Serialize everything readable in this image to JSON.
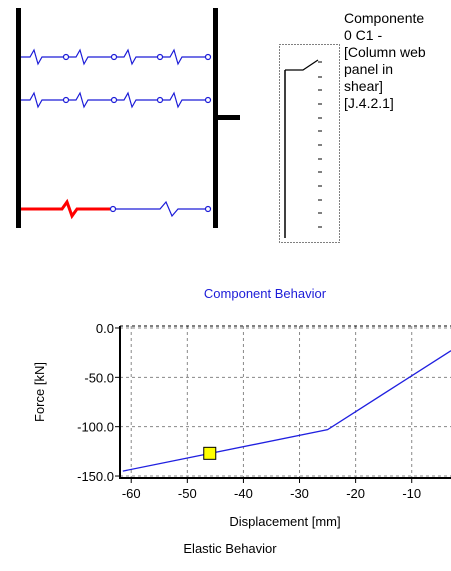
{
  "diagram": {
    "component_label": "Componente\n0 C1 -\n[Column web\npanel in\nshear]\n[J.4.2.1]"
  },
  "chart_data": {
    "type": "line",
    "title": "Component Behavior",
    "xlabel": "Displacement [mm]",
    "ylabel": "Force [kN]",
    "xlim": [
      -62,
      -3
    ],
    "ylim": [
      -152,
      2
    ],
    "xticks": [
      -60,
      -50,
      -40,
      -30,
      -20,
      -10
    ],
    "xtick_labels": [
      "-60",
      "-50",
      "-40",
      "-30",
      "-20",
      "-10"
    ],
    "yticks": [
      0,
      -50,
      -100,
      -150
    ],
    "ytick_labels": [
      "0.0",
      "-50.0",
      "-100.0",
      "-150.0"
    ],
    "grid": true,
    "series": [
      {
        "color": "#2020e0",
        "x": [
          -61.5,
          -25,
          -3
        ],
        "y": [
          -145,
          -103,
          -23
        ]
      }
    ],
    "marker": {
      "x": -46,
      "y": -127,
      "color": "#ffff00"
    }
  },
  "footer": {
    "label": "Elastic Behavior"
  },
  "colors": {
    "spring": "#1c1cd8",
    "active_spring": "#ff0000",
    "bar": "#000000"
  }
}
